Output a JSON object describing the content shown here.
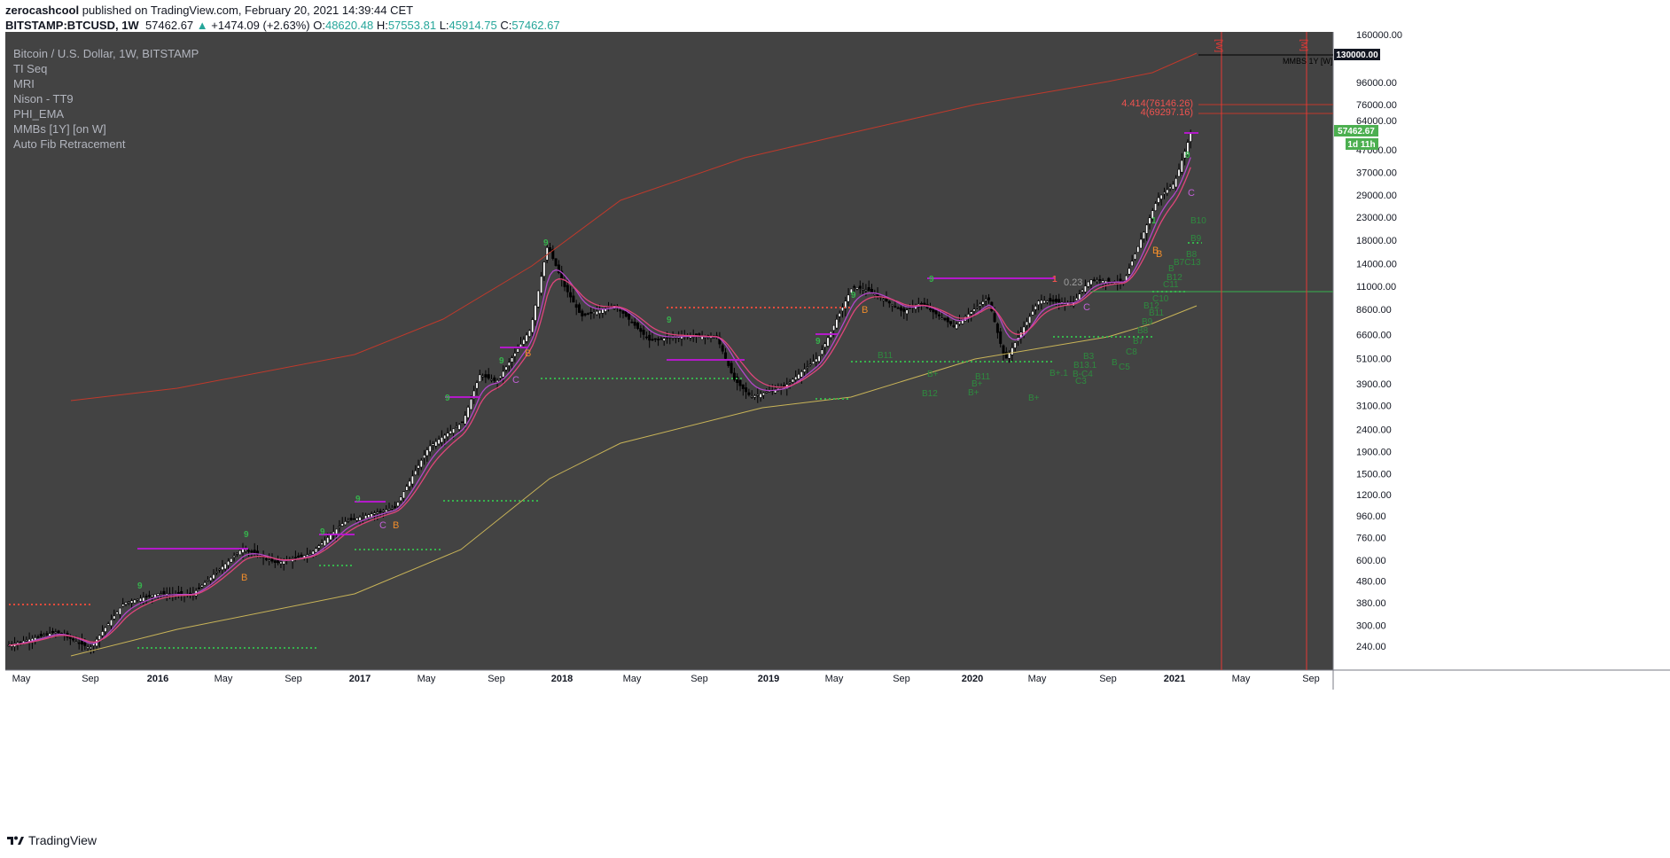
{
  "header": {
    "user": "zerocashcool",
    "published": "published on TradingView.com, February 20, 2021 14:39:44 CET",
    "symbol": "BITSTAMP:BTCUSD, 1W",
    "price": "57462.67",
    "change": "+1474.09 (+2.63%)",
    "o_label": "O:",
    "o": "48620.48",
    "h_label": "H:",
    "h": "57553.81",
    "l_label": "L:",
    "l": "45914.75",
    "c_label": "C:",
    "c": "57462.67"
  },
  "legend": [
    "Bitcoin / U.S. Dollar, 1W, BITSTAMP",
    "TI Seq",
    "MRI",
    "Nison - TT9",
    "PHI_EMA",
    "MMBs [1Y] [on W]",
    "Auto Fib Retracement"
  ],
  "brand": "TradingView",
  "colors": {
    "background": "#434343",
    "candle": "#000000",
    "ema_fast": "#e0457b",
    "ema_slow": "#b347c9",
    "mmb_upper": "#c0392b",
    "long_ma": "#c9b458",
    "green_signal": "#37b24d",
    "red_dotted": "#e74c3c",
    "purple_level": "#b31ac9",
    "current_price": "#4caf50"
  },
  "chart_data": {
    "type": "candlestick",
    "title": "Bitcoin / U.S. Dollar, 1W, BITSTAMP",
    "scale": "log",
    "ylim": [
      200,
      160000
    ],
    "y_ticks": [
      "160000.00",
      "130000.00",
      "96000.00",
      "76000.00",
      "64000.00",
      "57462.67",
      "47000.00",
      "37000.00",
      "29000.00",
      "23000.00",
      "18000.00",
      "14000.00",
      "11000.00",
      "8600.00",
      "6600.00",
      "5100.00",
      "3900.00",
      "3100.00",
      "2400.00",
      "1900.00",
      "1500.00",
      "1200.00",
      "960.00",
      "760.00",
      "600.00",
      "480.00",
      "380.00",
      "300.00",
      "240.00"
    ],
    "x_ticks": [
      "May",
      "Sep",
      "2016",
      "May",
      "Sep",
      "2017",
      "May",
      "Sep",
      "2018",
      "May",
      "Sep",
      "2019",
      "May",
      "Sep",
      "2020",
      "May",
      "Sep",
      "2021",
      "May",
      "Sep"
    ],
    "price_path": [
      [
        "2015-04",
        240
      ],
      [
        "2015-07",
        280
      ],
      [
        "2015-09",
        235
      ],
      [
        "2015-11",
        380
      ],
      [
        "2016-01",
        420
      ],
      [
        "2016-03",
        415
      ],
      [
        "2016-06",
        680
      ],
      [
        "2016-08",
        580
      ],
      [
        "2016-10",
        640
      ],
      [
        "2016-12",
        900
      ],
      [
        "2017-01",
        950
      ],
      [
        "2017-03",
        1050
      ],
      [
        "2017-05",
        2000
      ],
      [
        "2017-07",
        2600
      ],
      [
        "2017-08",
        4300
      ],
      [
        "2017-09",
        4000
      ],
      [
        "2017-11",
        7000
      ],
      [
        "2017-12",
        17000
      ],
      [
        "2018-01",
        11000
      ],
      [
        "2018-02",
        8000
      ],
      [
        "2018-04",
        9000
      ],
      [
        "2018-06",
        6200
      ],
      [
        "2018-08",
        6500
      ],
      [
        "2018-10",
        6400
      ],
      [
        "2018-11",
        4100
      ],
      [
        "2018-12",
        3400
      ],
      [
        "2019-02",
        3800
      ],
      [
        "2019-04",
        5200
      ],
      [
        "2019-06",
        11000
      ],
      [
        "2019-07",
        10500
      ],
      [
        "2019-09",
        8400
      ],
      [
        "2019-10",
        9200
      ],
      [
        "2019-12",
        7200
      ],
      [
        "2020-02",
        9800
      ],
      [
        "2020-03",
        5000
      ],
      [
        "2020-05",
        9500
      ],
      [
        "2020-07",
        9200
      ],
      [
        "2020-08",
        11800
      ],
      [
        "2020-10",
        11500
      ],
      [
        "2020-11",
        18000
      ],
      [
        "2020-12",
        28000
      ],
      [
        "2021-01",
        33000
      ],
      [
        "2021-02",
        57462.67
      ]
    ],
    "last_price": "57462.67",
    "countdown": "1d 11h",
    "target_label": "130000.00",
    "mmbs_label": "MMBS 1Y [W]",
    "fib_labels": [
      "4.414(76146.26)",
      "4(69297.16)",
      "0.23"
    ],
    "vertical_markers": [
      "[W]",
      "[M]"
    ],
    "seq_labels": [
      "9",
      "9",
      "9",
      "9",
      "9",
      "9",
      "9",
      "9",
      "9",
      "9",
      "9",
      "1",
      "1",
      "9"
    ],
    "phase_labels": [
      "B",
      "C",
      "B",
      "C",
      "B",
      "B",
      "C",
      "B",
      "C",
      "B"
    ],
    "signal_labels": [
      "B10",
      "B9",
      "B8",
      "B7C13",
      "B",
      "B12",
      "B11",
      "C11",
      "B12",
      "C10",
      "B11",
      "B9",
      "B8",
      "B7",
      "B3",
      "B13.1",
      "B-C4",
      "C3",
      "B+.1",
      "B+",
      "B12",
      "B+",
      "B+",
      "B+",
      "B11",
      "B",
      "C5",
      "C8"
    ]
  }
}
